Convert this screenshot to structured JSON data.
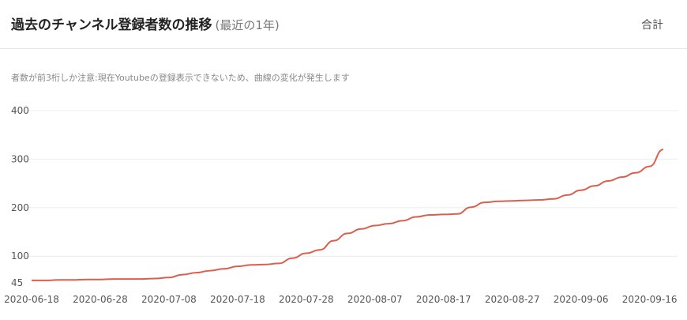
{
  "header": {
    "title": "過去のチャンネル登録者数の推移",
    "subtitle": "(最近の1年)",
    "mode_label": "合計"
  },
  "note": "者数が前3桁しか注意:現在Youtubeの登録表示できないため、曲線の変化が発生します",
  "chart_data": {
    "type": "line",
    "x_ticks": [
      "2020-06-18",
      "2020-06-28",
      "2020-07-08",
      "2020-07-18",
      "2020-07-28",
      "2020-08-07",
      "2020-08-17",
      "2020-08-27",
      "2020-09-06",
      "2020-09-16"
    ],
    "y_ticks": [
      45,
      100,
      200,
      300,
      400
    ],
    "ylim": [
      45,
      400
    ],
    "xlim": [
      "2020-06-18",
      "2020-09-18"
    ],
    "grid": true,
    "color": "#d9604f",
    "series": [
      {
        "name": "",
        "x": [
          "2020-06-18",
          "2020-06-20",
          "2020-06-22",
          "2020-06-24",
          "2020-06-26",
          "2020-06-28",
          "2020-06-30",
          "2020-07-02",
          "2020-07-04",
          "2020-07-06",
          "2020-07-08",
          "2020-07-10",
          "2020-07-12",
          "2020-07-14",
          "2020-07-16",
          "2020-07-18",
          "2020-07-20",
          "2020-07-22",
          "2020-07-24",
          "2020-07-26",
          "2020-07-28",
          "2020-07-30",
          "2020-08-01",
          "2020-08-03",
          "2020-08-05",
          "2020-08-07",
          "2020-08-09",
          "2020-08-11",
          "2020-08-13",
          "2020-08-15",
          "2020-08-17",
          "2020-08-19",
          "2020-08-21",
          "2020-08-23",
          "2020-08-25",
          "2020-08-27",
          "2020-08-29",
          "2020-08-31",
          "2020-09-02",
          "2020-09-04",
          "2020-09-06",
          "2020-09-08",
          "2020-09-10",
          "2020-09-12",
          "2020-09-14",
          "2020-09-16",
          "2020-09-18"
        ],
        "values": [
          50,
          50,
          51,
          51,
          52,
          52,
          53,
          53,
          53,
          54,
          56,
          62,
          66,
          70,
          74,
          79,
          82,
          83,
          85,
          96,
          106,
          113,
          132,
          147,
          156,
          163,
          167,
          173,
          181,
          185,
          186,
          187,
          201,
          211,
          213,
          214,
          215,
          216,
          218,
          226,
          236,
          245,
          255,
          263,
          272,
          285,
          320
        ]
      }
    ]
  }
}
